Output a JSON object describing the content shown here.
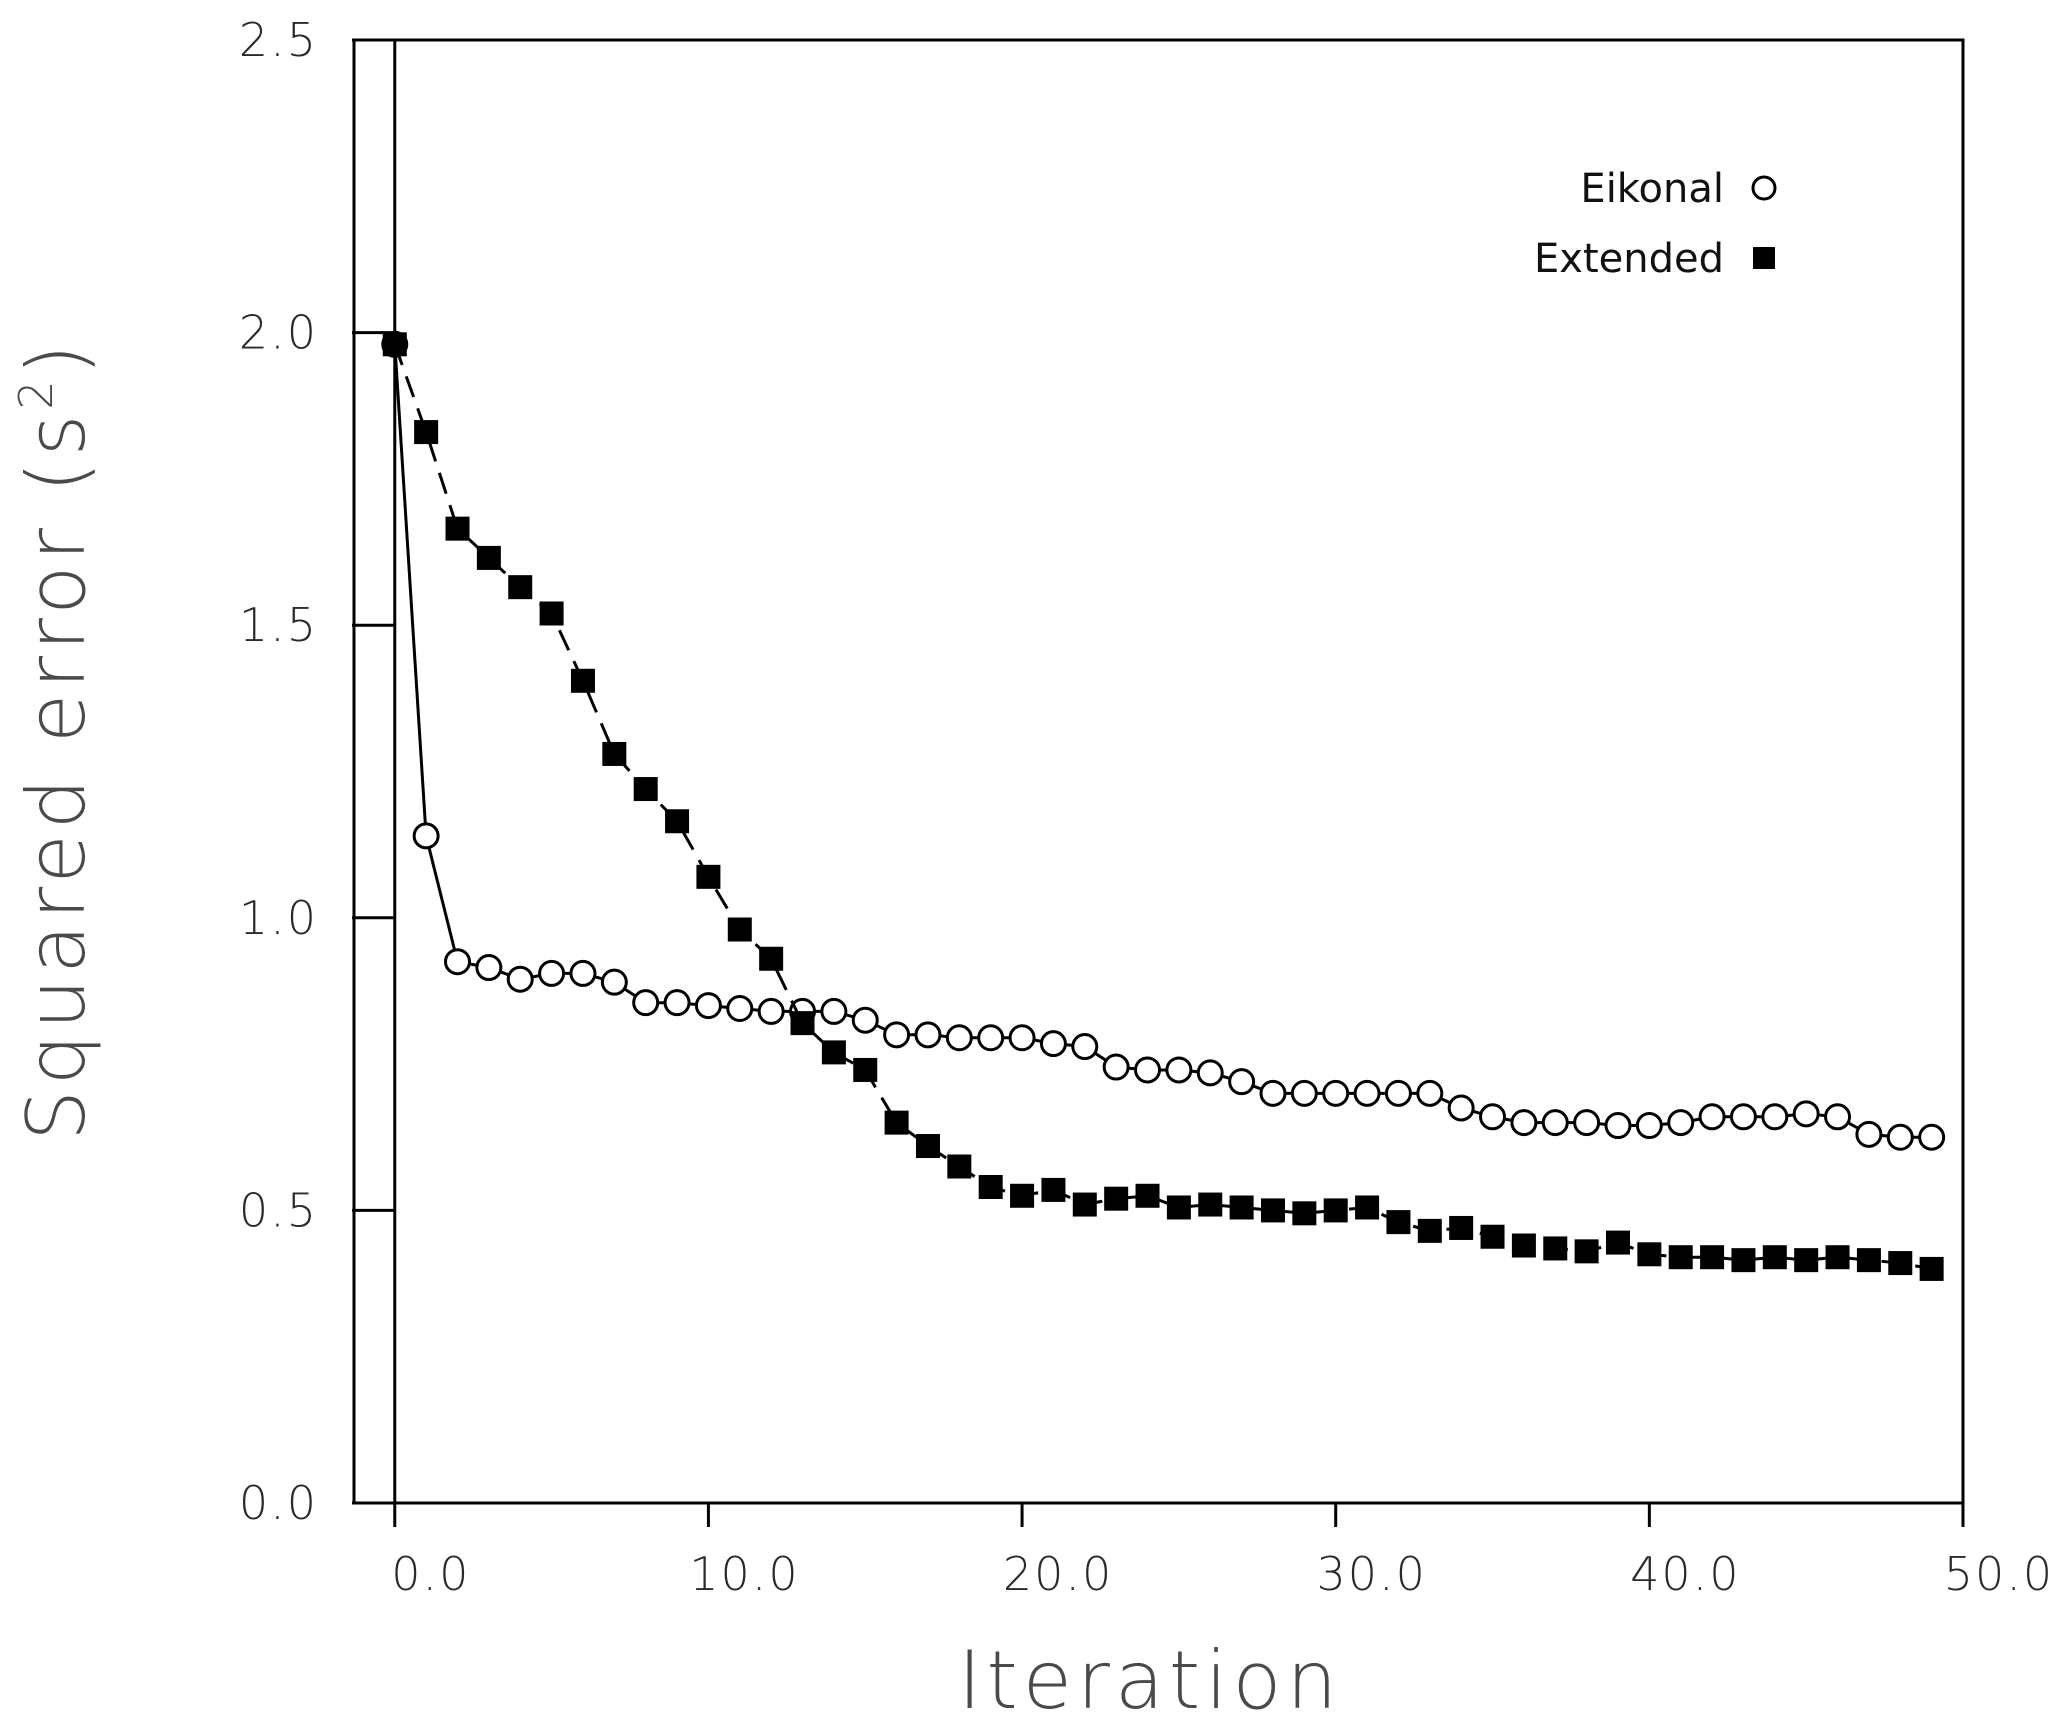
{
  "chart_data": {
    "type": "line",
    "title": "",
    "xlabel": "Iteration",
    "ylabel": "Squared error (s²)",
    "ylabel_parts": {
      "main": "Squared error (s",
      "sup": "2",
      "close": ")"
    },
    "xlim": [
      -1.3,
      50
    ],
    "ylim": [
      0,
      2.5
    ],
    "x_ticks": [
      0,
      10,
      20,
      30,
      40,
      50
    ],
    "x_tick_labels": [
      "0.0",
      "10.0",
      "20.0",
      "30.0",
      "40.0",
      "50.0"
    ],
    "y_ticks": [
      0,
      0.5,
      1.0,
      1.5,
      2.0,
      2.5
    ],
    "y_tick_labels": [
      "0.0",
      "0.5",
      "1.0",
      "1.5",
      "2.0",
      "2.5"
    ],
    "grid": false,
    "legend_position": "top-right",
    "series": [
      {
        "name": "Eikonal",
        "marker": "open-circle",
        "line": "solid",
        "color": "#000000",
        "x": [
          0,
          1,
          2,
          3,
          4,
          5,
          6,
          7,
          8,
          9,
          10,
          11,
          12,
          13,
          14,
          15,
          16,
          17,
          18,
          19,
          20,
          21,
          22,
          23,
          24,
          25,
          26,
          27,
          28,
          29,
          30,
          31,
          32,
          33,
          34,
          35,
          36,
          37,
          38,
          39,
          40,
          41,
          42,
          43,
          44,
          45,
          46,
          47,
          48,
          49
        ],
        "values": [
          1.98,
          1.14,
          0.925,
          0.915,
          0.895,
          0.905,
          0.905,
          0.89,
          0.855,
          0.855,
          0.85,
          0.845,
          0.84,
          0.84,
          0.84,
          0.825,
          0.8,
          0.8,
          0.795,
          0.795,
          0.795,
          0.785,
          0.78,
          0.745,
          0.74,
          0.74,
          0.735,
          0.72,
          0.7,
          0.7,
          0.7,
          0.7,
          0.7,
          0.7,
          0.675,
          0.66,
          0.65,
          0.65,
          0.65,
          0.645,
          0.645,
          0.65,
          0.66,
          0.66,
          0.66,
          0.665,
          0.66,
          0.63,
          0.625,
          0.625
        ]
      },
      {
        "name": "Extended",
        "marker": "filled-square",
        "line": "dashed",
        "color": "#000000",
        "x": [
          0,
          1,
          2,
          3,
          4,
          5,
          6,
          7,
          8,
          9,
          10,
          11,
          12,
          13,
          14,
          15,
          16,
          17,
          18,
          19,
          20,
          21,
          22,
          23,
          24,
          25,
          26,
          27,
          28,
          29,
          30,
          31,
          32,
          33,
          34,
          35,
          36,
          37,
          38,
          39,
          40,
          41,
          42,
          43,
          44,
          45,
          46,
          47,
          48,
          49
        ],
        "values": [
          1.98,
          1.83,
          1.665,
          1.615,
          1.565,
          1.52,
          1.405,
          1.28,
          1.22,
          1.165,
          1.07,
          0.98,
          0.93,
          0.82,
          0.77,
          0.74,
          0.65,
          0.61,
          0.575,
          0.54,
          0.525,
          0.535,
          0.51,
          0.52,
          0.525,
          0.505,
          0.51,
          0.505,
          0.5,
          0.495,
          0.5,
          0.505,
          0.48,
          0.465,
          0.47,
          0.455,
          0.44,
          0.435,
          0.43,
          0.445,
          0.425,
          0.42,
          0.42,
          0.415,
          0.42,
          0.415,
          0.42,
          0.415,
          0.41,
          0.4
        ]
      }
    ]
  }
}
